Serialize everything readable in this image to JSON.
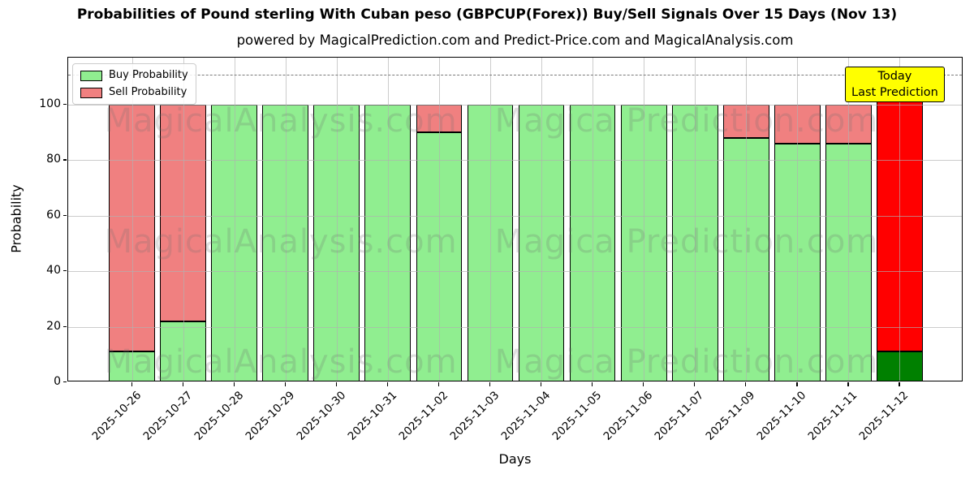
{
  "title": "Probabilities of Pound sterling With Cuban peso (GBPCUP(Forex)) Buy/Sell Signals Over 15 Days (Nov 13)",
  "subtitle": "powered by MagicalPrediction.com and Predict-Price.com and MagicalAnalysis.com",
  "annotation": {
    "line1": "Today",
    "line2": "Last Prediction",
    "bg": "#ffff00"
  },
  "watermarks": {
    "left": "MagicalAnalysis.com",
    "right": "Magica Prediction.com"
  },
  "colors": {
    "buy": "#90EE90",
    "sell": "#F08080",
    "today_buy": "#008000",
    "today_sell": "#ff0000",
    "grid": "#b0b0b0",
    "dashed_line": "#7a7a7a",
    "annotation_bg": "#ffff00"
  },
  "chart_data": {
    "type": "bar",
    "stacked": true,
    "title": "Probabilities of Pound sterling With Cuban peso (GBPCUP(Forex)) Buy/Sell Signals Over 15 Days (Nov 13)",
    "xlabel": "Days",
    "ylabel": "Probability",
    "categories": [
      "2025-10-26",
      "2025-10-27",
      "2025-10-28",
      "2025-10-29",
      "2025-10-30",
      "2025-10-31",
      "2025-11-02",
      "2025-11-03",
      "2025-11-04",
      "2025-11-05",
      "2025-11-06",
      "2025-11-07",
      "2025-11-09",
      "2025-11-10",
      "2025-11-11",
      "2025-11-12"
    ],
    "series": [
      {
        "name": "Buy Probability",
        "color": "#90EE90",
        "values": [
          11,
          22,
          100,
          100,
          100,
          100,
          90,
          100,
          100,
          100,
          100,
          100,
          88,
          86,
          86,
          11
        ]
      },
      {
        "name": "Sell Probability",
        "color": "#F08080",
        "values": [
          89,
          78,
          0,
          0,
          0,
          0,
          10,
          0,
          0,
          0,
          0,
          0,
          12,
          14,
          14,
          99
        ]
      }
    ],
    "today_bar": {
      "index": 15,
      "buy_color": "#008000",
      "sell_color": "#ff0000",
      "total": 110
    },
    "yticks": [
      0,
      20,
      40,
      60,
      80,
      100
    ],
    "ylim": [
      0,
      117
    ],
    "dashed_line_y": 111,
    "grid": true,
    "legend_position": "upper left",
    "bar_width_fraction": 0.9
  }
}
